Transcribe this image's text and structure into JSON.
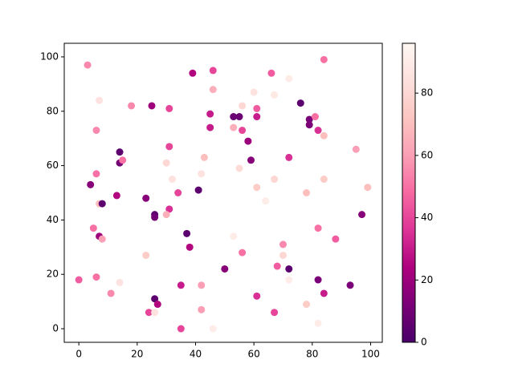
{
  "chart_data": {
    "type": "scatter",
    "x": [
      3,
      7,
      6,
      18,
      25,
      31,
      39,
      46,
      46,
      45,
      45,
      53,
      55,
      53,
      56,
      56,
      60,
      61,
      61,
      66,
      67,
      72,
      76,
      79,
      79,
      81,
      82,
      84,
      84,
      95,
      99,
      97,
      88,
      82,
      84,
      82,
      93,
      82,
      78,
      84,
      78,
      72,
      67,
      64,
      61,
      55,
      58,
      59,
      14,
      14,
      15,
      6,
      4,
      7,
      8,
      13,
      23,
      26,
      26,
      30,
      31,
      32,
      34,
      31,
      30,
      41,
      42,
      43,
      5,
      7,
      8,
      6,
      0,
      11,
      14,
      23,
      26,
      27,
      24,
      26,
      35,
      35,
      37,
      38,
      42,
      42,
      46,
      50,
      53,
      56,
      61,
      67,
      68,
      70,
      70,
      72,
      72
    ],
    "y": [
      97,
      84,
      73,
      82,
      82,
      81,
      94,
      95,
      88,
      79,
      74,
      78,
      78,
      74,
      82,
      73,
      87,
      81,
      78,
      94,
      86,
      92,
      83,
      77,
      75,
      78,
      73,
      71,
      99,
      66,
      52,
      42,
      33,
      37,
      13,
      18,
      16,
      2,
      9,
      55,
      50,
      63,
      55,
      47,
      52,
      59,
      69,
      62,
      65,
      61,
      62,
      57,
      53,
      46,
      46,
      49,
      48,
      42,
      41,
      61,
      67,
      55,
      50,
      44,
      42,
      51,
      57,
      63,
      37,
      34,
      33,
      19,
      18,
      13,
      17,
      27,
      11,
      9,
      6,
      6,
      16,
      0,
      35,
      30,
      16,
      7,
      0,
      22,
      34,
      28,
      12,
      6,
      23,
      31,
      27,
      22,
      18
    ],
    "c": [
      55,
      85,
      55,
      55,
      20,
      40,
      25,
      40,
      65,
      30,
      30,
      8,
      8,
      65,
      80,
      40,
      85,
      45,
      30,
      45,
      88,
      90,
      5,
      12,
      12,
      50,
      35,
      70,
      50,
      60,
      70,
      15,
      45,
      50,
      30,
      12,
      12,
      90,
      75,
      75,
      70,
      35,
      80,
      90,
      75,
      82,
      20,
      15,
      5,
      10,
      50,
      50,
      15,
      70,
      5,
      25,
      15,
      5,
      10,
      80,
      40,
      85,
      40,
      35,
      65,
      5,
      85,
      70,
      50,
      20,
      60,
      50,
      45,
      55,
      85,
      75,
      5,
      25,
      40,
      85,
      30,
      40,
      5,
      25,
      60,
      60,
      90,
      15,
      90,
      50,
      35,
      40,
      45,
      55,
      80,
      5,
      90
    ],
    "xlim": [
      -5,
      104
    ],
    "ylim": [
      -5,
      105
    ],
    "xticks": [
      0,
      20,
      40,
      60,
      80,
      100
    ],
    "yticks": [
      0,
      20,
      40,
      60,
      80,
      100
    ],
    "cmap": [
      "#49006a",
      "#7a0177",
      "#ae017e",
      "#dd3497",
      "#f768a1",
      "#fa9fb5",
      "#fcc5c0",
      "#fde0dd",
      "#fff7f3"
    ],
    "clim": [
      0,
      96
    ],
    "cticks": [
      0,
      20,
      40,
      60,
      80
    ]
  }
}
